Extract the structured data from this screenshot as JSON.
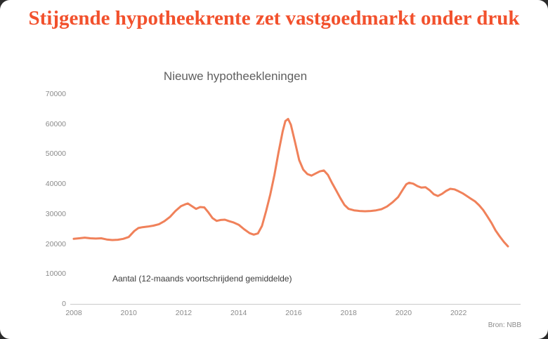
{
  "page": {
    "title": "Stijgende hypotheekrente zet vastgoedmarkt onder druk",
    "source": "Bron: NBB"
  },
  "colors": {
    "headline": "#F2512D",
    "line": "#F0815A",
    "axis": "#C9C9C9",
    "tick_text": "#8A8A8A"
  },
  "chart_data": {
    "type": "line",
    "title": "Nieuwe hypotheekleningen",
    "annotation": "Aantal (12-maands voortschrijdend gemiddelde)",
    "xlabel": "",
    "ylabel": "",
    "xlim": [
      2008,
      2023.85
    ],
    "ylim": [
      0,
      70000
    ],
    "xticks": [
      2008,
      2010,
      2012,
      2014,
      2016,
      2018,
      2020,
      2022
    ],
    "yticks": [
      0,
      10000,
      20000,
      30000,
      40000,
      50000,
      60000,
      70000
    ],
    "grid": false,
    "legend": false,
    "line_color": "#F0815A",
    "series": [
      {
        "name": "Nieuwe hypotheekleningen (12-maands voortschrijdend gemiddelde)",
        "points": [
          [
            2008.0,
            21700
          ],
          [
            2008.2,
            21900
          ],
          [
            2008.4,
            22100
          ],
          [
            2008.6,
            21900
          ],
          [
            2008.8,
            21800
          ],
          [
            2009.0,
            21900
          ],
          [
            2009.2,
            21500
          ],
          [
            2009.4,
            21300
          ],
          [
            2009.6,
            21400
          ],
          [
            2009.8,
            21700
          ],
          [
            2010.0,
            22300
          ],
          [
            2010.2,
            24300
          ],
          [
            2010.35,
            25300
          ],
          [
            2010.5,
            25600
          ],
          [
            2010.7,
            25800
          ],
          [
            2010.9,
            26100
          ],
          [
            2011.1,
            26600
          ],
          [
            2011.3,
            27600
          ],
          [
            2011.5,
            29000
          ],
          [
            2011.7,
            31000
          ],
          [
            2011.9,
            32600
          ],
          [
            2012.05,
            33200
          ],
          [
            2012.15,
            33500
          ],
          [
            2012.3,
            32600
          ],
          [
            2012.45,
            31700
          ],
          [
            2012.6,
            32300
          ],
          [
            2012.75,
            32200
          ],
          [
            2012.9,
            30500
          ],
          [
            2013.05,
            28600
          ],
          [
            2013.2,
            27700
          ],
          [
            2013.35,
            28000
          ],
          [
            2013.5,
            28100
          ],
          [
            2013.65,
            27600
          ],
          [
            2013.8,
            27200
          ],
          [
            2014.0,
            26400
          ],
          [
            2014.2,
            24900
          ],
          [
            2014.4,
            23600
          ],
          [
            2014.55,
            23100
          ],
          [
            2014.7,
            23500
          ],
          [
            2014.85,
            26000
          ],
          [
            2015.0,
            31000
          ],
          [
            2015.15,
            36500
          ],
          [
            2015.3,
            43000
          ],
          [
            2015.45,
            50500
          ],
          [
            2015.6,
            57500
          ],
          [
            2015.7,
            61000
          ],
          [
            2015.8,
            61700
          ],
          [
            2015.9,
            59800
          ],
          [
            2016.05,
            54000
          ],
          [
            2016.2,
            48000
          ],
          [
            2016.35,
            44800
          ],
          [
            2016.5,
            43300
          ],
          [
            2016.65,
            42800
          ],
          [
            2016.8,
            43500
          ],
          [
            2016.95,
            44200
          ],
          [
            2017.1,
            44500
          ],
          [
            2017.25,
            43000
          ],
          [
            2017.4,
            40300
          ],
          [
            2017.55,
            37800
          ],
          [
            2017.7,
            35300
          ],
          [
            2017.85,
            33000
          ],
          [
            2018.0,
            31700
          ],
          [
            2018.2,
            31200
          ],
          [
            2018.4,
            31000
          ],
          [
            2018.6,
            30900
          ],
          [
            2018.8,
            31000
          ],
          [
            2019.0,
            31200
          ],
          [
            2019.2,
            31600
          ],
          [
            2019.4,
            32500
          ],
          [
            2019.6,
            33900
          ],
          [
            2019.8,
            35600
          ],
          [
            2020.0,
            38500
          ],
          [
            2020.1,
            39900
          ],
          [
            2020.2,
            40400
          ],
          [
            2020.35,
            40100
          ],
          [
            2020.5,
            39300
          ],
          [
            2020.65,
            38800
          ],
          [
            2020.8,
            38900
          ],
          [
            2020.95,
            37900
          ],
          [
            2021.1,
            36600
          ],
          [
            2021.25,
            36000
          ],
          [
            2021.4,
            36700
          ],
          [
            2021.55,
            37700
          ],
          [
            2021.7,
            38400
          ],
          [
            2021.85,
            38200
          ],
          [
            2022.0,
            37600
          ],
          [
            2022.15,
            36900
          ],
          [
            2022.3,
            36000
          ],
          [
            2022.45,
            35100
          ],
          [
            2022.6,
            34200
          ],
          [
            2022.75,
            32900
          ],
          [
            2022.9,
            31300
          ],
          [
            2023.05,
            29200
          ],
          [
            2023.2,
            27000
          ],
          [
            2023.35,
            24500
          ],
          [
            2023.5,
            22500
          ],
          [
            2023.65,
            20700
          ],
          [
            2023.8,
            19200
          ]
        ]
      }
    ]
  }
}
